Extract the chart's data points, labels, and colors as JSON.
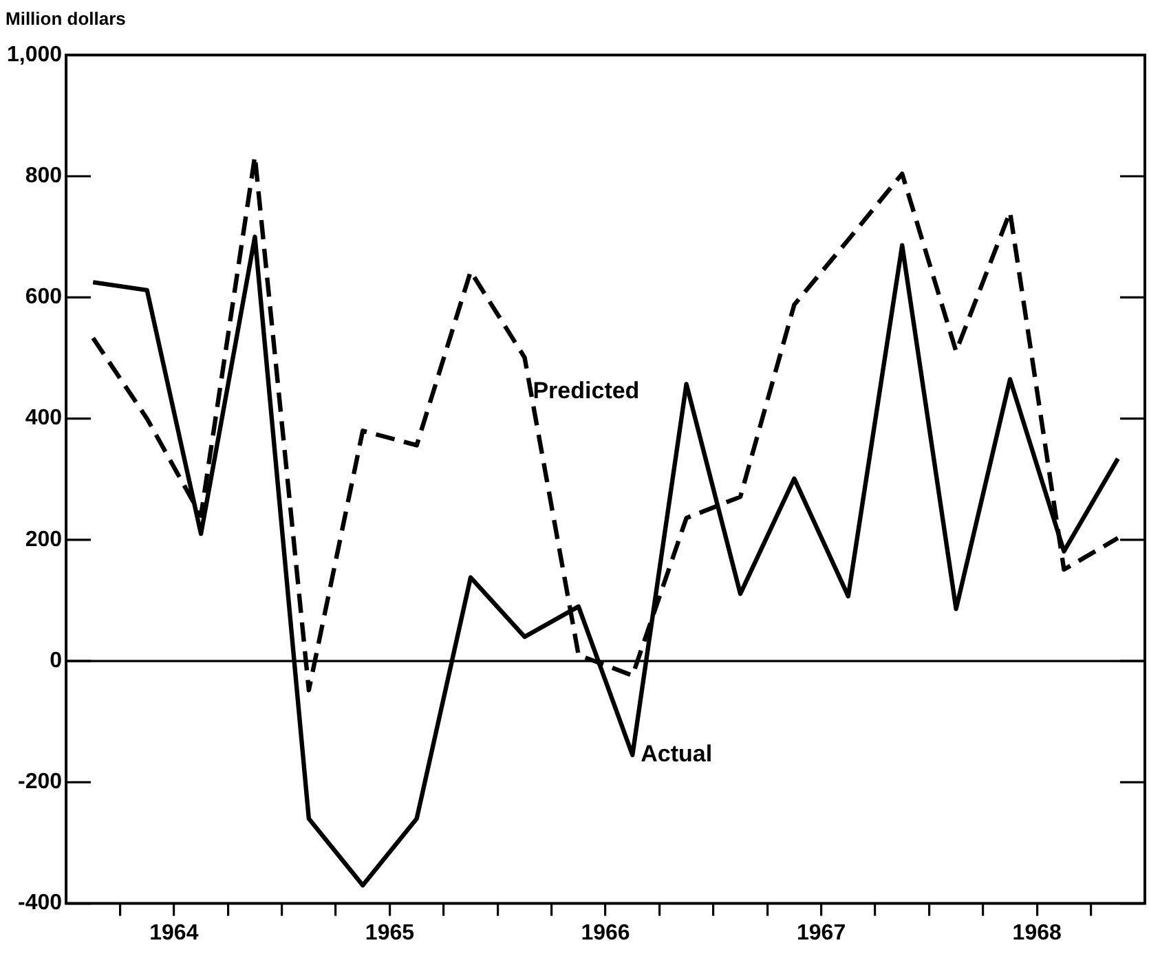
{
  "chart_data": {
    "type": "line",
    "ylabel": "Million dollars",
    "x": [
      1964.125,
      1964.375,
      1964.625,
      1964.875,
      1965.125,
      1965.375,
      1965.625,
      1965.875,
      1966.125,
      1966.375,
      1966.625,
      1966.875,
      1967.125,
      1967.375,
      1967.625,
      1967.875,
      1968.125,
      1968.375,
      1968.625,
      1968.875
    ],
    "series": [
      {
        "name": "Actual",
        "color": "#000000",
        "line_style": "solid",
        "values": [
          625,
          612,
          210,
          700,
          -260,
          -370,
          -260,
          138,
          40,
          90,
          -155,
          457,
          111,
          301,
          107,
          686,
          86,
          465,
          181,
          334
        ]
      },
      {
        "name": "Predicted",
        "color": "#000000",
        "line_style": "dashed",
        "values": [
          533,
          400,
          240,
          833,
          -48,
          380,
          356,
          643,
          501,
          10,
          -24,
          236,
          271,
          588,
          695,
          804,
          511,
          741,
          151,
          203
        ]
      }
    ],
    "xlim": [
      1964,
      1969
    ],
    "xticks": [
      {
        "value": 1964.25,
        "label": null
      },
      {
        "value": 1964.5,
        "label": "1964"
      },
      {
        "value": 1964.75,
        "label": null
      },
      {
        "value": 1965,
        "label": null
      },
      {
        "value": 1965.25,
        "label": null
      },
      {
        "value": 1965.5,
        "label": "1965"
      },
      {
        "value": 1965.75,
        "label": null
      },
      {
        "value": 1966,
        "label": null
      },
      {
        "value": 1966.25,
        "label": null
      },
      {
        "value": 1966.5,
        "label": "1966"
      },
      {
        "value": 1966.75,
        "label": null
      },
      {
        "value": 1967,
        "label": null
      },
      {
        "value": 1967.25,
        "label": null
      },
      {
        "value": 1967.5,
        "label": "1967"
      },
      {
        "value": 1967.75,
        "label": null
      },
      {
        "value": 1968,
        "label": null
      },
      {
        "value": 1968.25,
        "label": null
      },
      {
        "value": 1968.5,
        "label": "1968"
      },
      {
        "value": 1968.75,
        "label": null
      }
    ],
    "ylim": [
      -400,
      1000
    ],
    "yticks": [
      -400,
      -200,
      0,
      200,
      400,
      600,
      800,
      {
        "value": 1000,
        "label": "1,000"
      }
    ],
    "ref_lines": [
      {
        "axis": "y",
        "value": 0,
        "label": null
      }
    ],
    "grid": false,
    "legend": false,
    "marker": "none"
  }
}
